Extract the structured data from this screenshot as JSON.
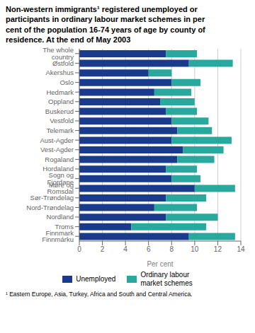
{
  "chart_data": {
    "type": "bar",
    "orientation": "horizontal",
    "stacked": true,
    "title": "Non-western immigrants¹ registered unemployed or\nparticipants in ordinary labour market schemes in per\ncent of the population 16-74 years of age by county of\nresidence. At the end of May 2003",
    "xlabel": "Per cent",
    "categories": [
      "The whole country",
      "Østfold",
      "Akershus",
      "Oslo",
      "Hedmark",
      "Oppland",
      "Buskerud",
      "Vestfold",
      "Telemark",
      "Aust-Agder",
      "Vest-Agder",
      "Rogaland",
      "Hordaland",
      "Sogn og Fjordane",
      "Møre og Romsdal",
      "Sør-Trøndelag",
      "Nord-Trøndelag",
      "Nordland",
      "Troms",
      "Finnmark Finnmárku"
    ],
    "series": [
      {
        "name": "Unemployed",
        "color": "#1a3a8c",
        "values": [
          7.5,
          9.5,
          6.0,
          8.0,
          6.5,
          7.0,
          7.5,
          8.0,
          8.5,
          8.0,
          9.0,
          8.5,
          7.5,
          8.0,
          10.0,
          7.5,
          6.5,
          7.5,
          4.5,
          9.5
        ]
      },
      {
        "name": "Ordinary labour\nmarket schemes",
        "color": "#29a89d",
        "values": [
          2.7,
          3.8,
          2.0,
          2.5,
          3.2,
          3.0,
          2.7,
          3.2,
          3.0,
          5.2,
          3.5,
          3.2,
          2.7,
          2.5,
          3.5,
          3.5,
          3.7,
          4.5,
          6.5,
          4.0
        ]
      }
    ],
    "xlim": [
      0,
      14
    ],
    "xticks": [
      0,
      2,
      4,
      6,
      8,
      10,
      12,
      14
    ],
    "grid": true,
    "legend": "bottom",
    "annotations": [
      "¹ Eastern Europe, Asia, Turkey, Africa and South and Central America."
    ]
  }
}
